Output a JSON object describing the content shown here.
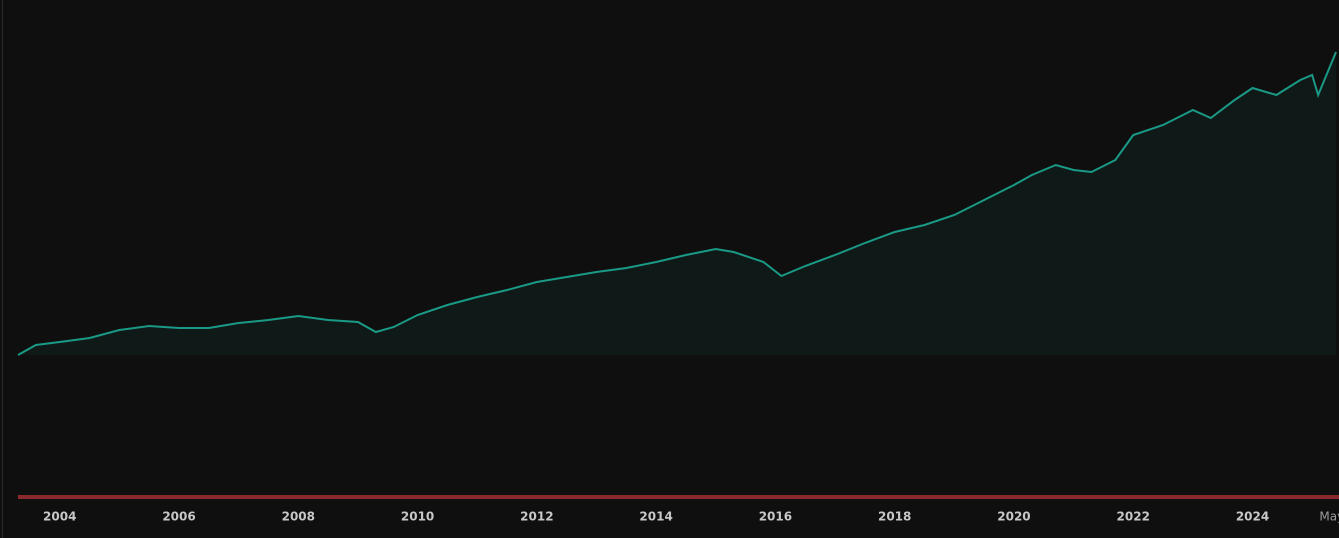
{
  "chart_data": {
    "type": "line",
    "x": [
      2003.3,
      2003.6,
      2004,
      2004.5,
      2005,
      2005.5,
      2006,
      2006.5,
      2007,
      2007.5,
      2008,
      2008.5,
      2009,
      2009.3,
      2009.6,
      2010,
      2010.5,
      2011,
      2011.5,
      2012,
      2012.5,
      2013,
      2013.5,
      2014,
      2014.5,
      2015,
      2015.3,
      2015.8,
      2016.1,
      2016.5,
      2017,
      2017.5,
      2018,
      2018.5,
      2019,
      2019.5,
      2020,
      2020.3,
      2020.7,
      2021,
      2021.3,
      2021.7,
      2022,
      2022.5,
      2023,
      2023.3,
      2023.7,
      2024,
      2024.4,
      2024.8,
      2025,
      2025.1,
      2025.4
    ],
    "series": [
      {
        "color": "#1a9a86",
        "values": [
          0,
          10,
          13,
          17,
          25,
          29,
          27,
          27,
          32,
          35,
          39,
          35,
          33,
          23,
          28,
          40,
          50,
          58,
          65,
          73,
          78,
          83,
          87,
          93,
          100,
          106,
          103,
          93,
          79,
          89,
          100,
          112,
          123,
          130,
          140,
          155,
          170,
          180,
          190,
          185,
          183,
          195,
          220,
          230,
          245,
          237,
          255,
          267,
          260,
          275,
          280,
          260,
          303
        ]
      }
    ],
    "xlim": [
      2003.3,
      2025.45
    ],
    "ylim": [
      0,
      310
    ],
    "xticks": [
      2004,
      2006,
      2008,
      2010,
      2012,
      2014,
      2016,
      2018,
      2020,
      2022,
      2024,
      {
        "value": 2025.33,
        "label": "May"
      }
    ]
  }
}
